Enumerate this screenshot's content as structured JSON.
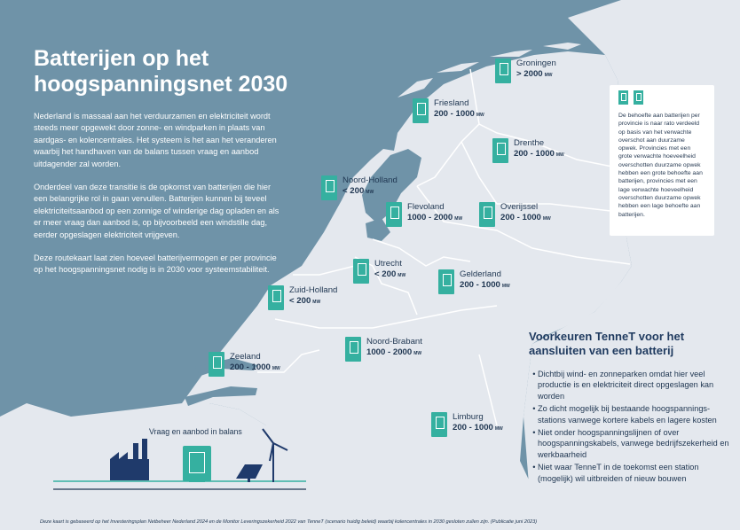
{
  "title": "Batterijen op het hoogspanningsnet 2030",
  "intro": [
    "Nederland is massaal aan het verduurzamen en elektriciteit wordt steeds meer opgewekt door zonne- en windparken in plaats van aardgas- en kolencentrales. Het systeem is het aan het veranderen waarbij het handhaven van de balans tussen vraag en aanbod uitdagender zal worden.",
    "Onderdeel van deze transitie is de opkomst van batterijen die hier een belangrijke rol in gaan vervullen. Batterijen kunnen bij teveel elektriciteitsaanbod op een zonnige of winderige dag opladen en als er meer vraag dan aanbod is, op bijvoorbeeld een windstille dag, eerder opgeslagen elektriciteit vrijgeven.",
    "Deze routekaart laat zien hoeveel batterijvermogen er per provincie op het hoogspanningsnet nodig is in 2030 voor systeemstabiliteit."
  ],
  "unit": "MW",
  "regions": [
    {
      "name": "Groningen",
      "value": "> 2000"
    },
    {
      "name": "Friesland",
      "value": "200 - 1000"
    },
    {
      "name": "Drenthe",
      "value": "200 - 1000"
    },
    {
      "name": "Noord-Holland",
      "value": "< 200"
    },
    {
      "name": "Flevoland",
      "value": "1000 - 2000"
    },
    {
      "name": "Overijssel",
      "value": "200 - 1000"
    },
    {
      "name": "Utrecht",
      "value": "< 200"
    },
    {
      "name": "Gelderland",
      "value": "200 - 1000"
    },
    {
      "name": "Zuid-Holland",
      "value": "< 200"
    },
    {
      "name": "Noord-Brabant",
      "value": "1000 - 2000"
    },
    {
      "name": "Zeeland",
      "value": "200 - 1000"
    },
    {
      "name": "Limburg",
      "value": "200 - 1000"
    }
  ],
  "note": "De behoefte aan batterijen per provincie is naar rato verdeeld op basis van het verwachte overschot aan duurzame opwek. Provincies met een grote verwachte hoeveelheid overschotten duurzame opwek hebben een grote behoefte aan batterijen, provincies met een lage verwachte hoeveelheid overschotten duurzame opwek hebben een lage behoefte aan batterijen.",
  "preferences": {
    "title": "Voorkeuren TenneT voor het aansluiten van een batterij",
    "items": [
      "Dichtbij wind- en zonneparken omdat hier veel productie is en elektriciteit direct opgeslagen kan worden",
      "Zo dicht mogelijk bij bestaande hoogspannings-stations vanwege kortere kabels en lagere kosten",
      "Niet onder hoogspanningslijnen of over hoogspanningskabels, vanwege bedrijfszekerheid en werkbaarheid",
      "Niet waar TenneT in de toekomst een station (mogelijk) wil uitbreiden of nieuw bouwen"
    ]
  },
  "balance_label": "Vraag en aanbod in balans",
  "footnote": "Deze kaart is gebaseerd op het Investeringsplan Netbeheer Nederland 2024 en de Monitor Leveringszekerheid 2022 van TenneT (scenario huidig beleid) waarbij kolencentrales in 2030 gesloten zullen zijn. (Publicatie juni 2023)",
  "colors": {
    "sea": "#6f93a8",
    "land": "#e4e8ee",
    "border": "#ffffff",
    "accent": "#35b0a0",
    "text": "#1f3651"
  },
  "icons": [
    "battery-icon",
    "factory-icon",
    "solar-panel-icon",
    "wind-turbine-icon"
  ]
}
